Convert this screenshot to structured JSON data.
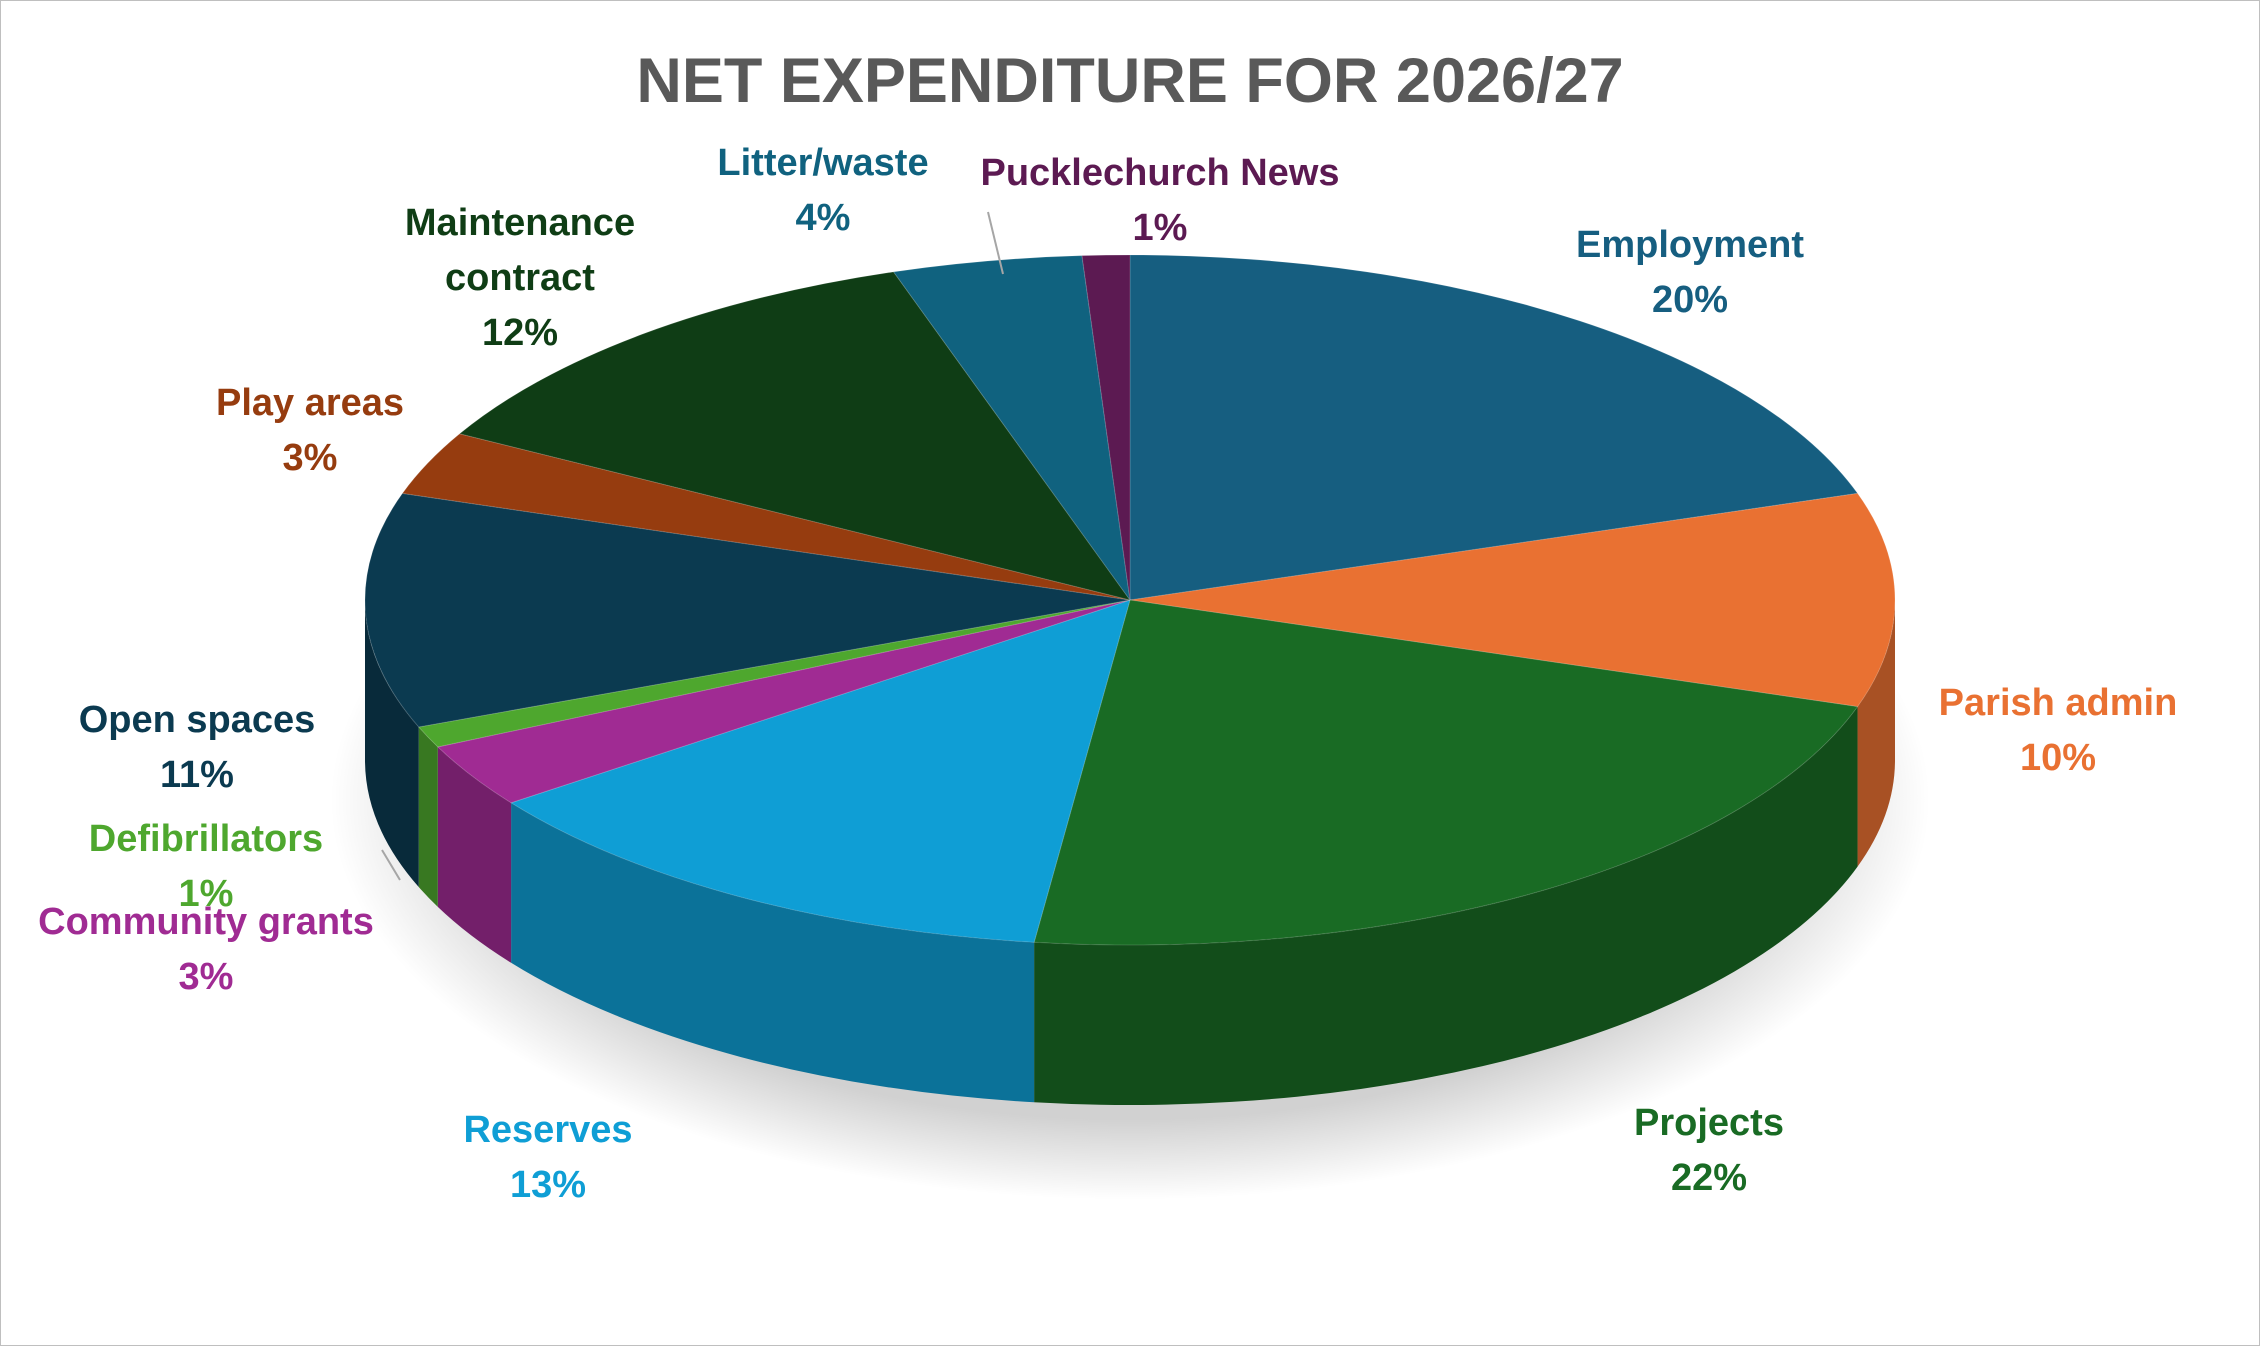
{
  "chart_data": {
    "type": "pie",
    "title": "NET EXPENDITURE FOR 2026/27",
    "categories": [
      "Employment",
      "Parish admin",
      "Projects",
      "Reserves",
      "Community grants",
      "Defibrillators",
      "Open spaces",
      "Play areas",
      "Maintenance contract",
      "Litter/waste",
      "Pucklechurch News"
    ],
    "values": [
      20,
      10,
      22,
      13,
      3,
      1,
      11,
      3,
      12,
      4,
      1
    ],
    "value_labels": [
      "20%",
      "10%",
      "22%",
      "13%",
      "3%",
      "1%",
      "11%",
      "3%",
      "12%",
      "4%",
      "1%"
    ],
    "colors": [
      "#165e80",
      "#e97132",
      "#196b24",
      "#0f9ed5",
      "#a02b93",
      "#4ea72e",
      "#0b3a50",
      "#963c0f",
      "#0f3d15",
      "#10627f",
      "#5c1a52"
    ]
  }
}
